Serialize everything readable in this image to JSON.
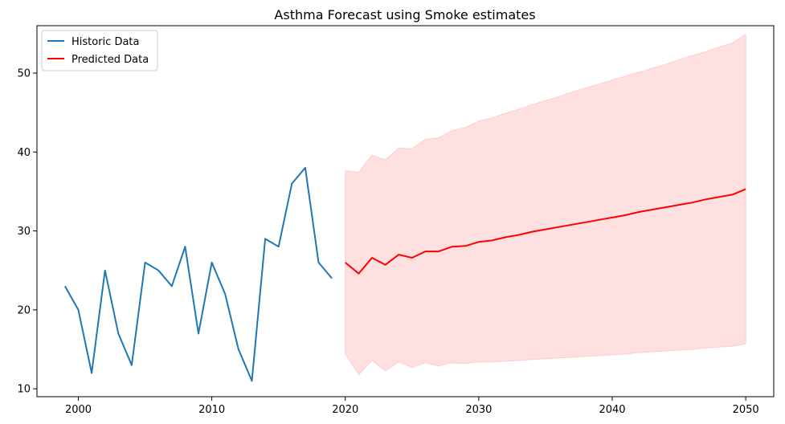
{
  "chart_data": {
    "type": "line",
    "title": "Asthma Forecast using Smoke estimates",
    "xlabel": "",
    "ylabel": "",
    "xlim": [
      1996.9,
      2052.1
    ],
    "ylim": [
      9.0,
      56.0
    ],
    "xticks": [
      2000,
      2010,
      2020,
      2030,
      2040,
      2050
    ],
    "yticks": [
      10,
      20,
      30,
      40,
      50
    ],
    "grid": false,
    "legend_position": "top-left",
    "series": [
      {
        "name": "Historic Data",
        "color": "#1f77b4",
        "x": [
          1999,
          2000,
          2001,
          2002,
          2003,
          2004,
          2005,
          2006,
          2007,
          2008,
          2009,
          2010,
          2011,
          2012,
          2013,
          2014,
          2015,
          2016,
          2017,
          2018,
          2019
        ],
        "y": [
          23,
          20,
          12,
          25,
          17,
          13,
          26,
          25,
          23,
          28,
          17,
          26,
          22,
          15,
          11,
          29,
          28,
          36,
          38,
          26,
          24
        ]
      },
      {
        "name": "Predicted Data",
        "color": "#ff0000",
        "x": [
          2020,
          2021,
          2022,
          2023,
          2024,
          2025,
          2026,
          2027,
          2028,
          2029,
          2030,
          2031,
          2032,
          2033,
          2034,
          2035,
          2036,
          2037,
          2038,
          2039,
          2040,
          2041,
          2042,
          2043,
          2044,
          2045,
          2046,
          2047,
          2048,
          2049,
          2050
        ],
        "y": [
          26.0,
          24.6,
          26.6,
          25.7,
          27.0,
          26.6,
          27.4,
          27.4,
          28.0,
          28.1,
          28.6,
          28.8,
          29.2,
          29.5,
          29.9,
          30.2,
          30.5,
          30.8,
          31.1,
          31.4,
          31.7,
          32.0,
          32.4,
          32.7,
          33.0,
          33.3,
          33.6,
          34.0,
          34.3,
          34.6,
          35.3
        ]
      }
    ],
    "confidence_band": {
      "color": "#ffcccc",
      "x": [
        2020,
        2021,
        2022,
        2023,
        2024,
        2025,
        2026,
        2027,
        2028,
        2029,
        2030,
        2031,
        2032,
        2033,
        2034,
        2035,
        2036,
        2037,
        2038,
        2039,
        2040,
        2041,
        2042,
        2043,
        2044,
        2045,
        2046,
        2047,
        2048,
        2049,
        2050
      ],
      "upper": [
        37.6,
        37.4,
        39.6,
        39.0,
        40.5,
        40.4,
        41.6,
        41.8,
        42.7,
        43.1,
        43.9,
        44.3,
        44.9,
        45.4,
        46.0,
        46.5,
        47.0,
        47.6,
        48.1,
        48.6,
        49.1,
        49.6,
        50.1,
        50.6,
        51.1,
        51.7,
        52.2,
        52.7,
        53.3,
        53.8,
        54.9
      ],
      "lower": [
        14.4,
        11.8,
        13.6,
        12.3,
        13.4,
        12.7,
        13.3,
        12.9,
        13.3,
        13.2,
        13.4,
        13.4,
        13.5,
        13.6,
        13.7,
        13.8,
        13.9,
        14.0,
        14.1,
        14.2,
        14.3,
        14.4,
        14.6,
        14.7,
        14.8,
        14.9,
        15.0,
        15.2,
        15.3,
        15.4,
        15.7
      ]
    }
  }
}
